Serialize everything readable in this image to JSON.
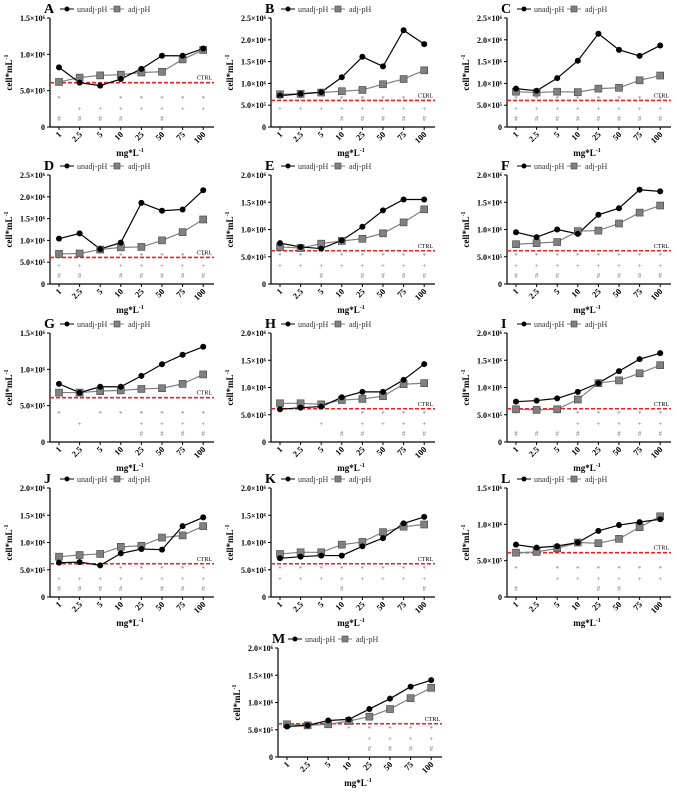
{
  "chart_data": {
    "type": "line",
    "categories": [
      "1",
      "2.5",
      "5",
      "10",
      "25",
      "50",
      "75",
      "100"
    ],
    "xlabel": "mg*L",
    "xlabel_sup": "-1",
    "ylabel": "cell*mL",
    "ylabel_sup": "-1",
    "units": "cells per mL x 10^6",
    "legend": [
      "unadj-pH",
      "adj-pH"
    ],
    "ctrl_label": "CTRL",
    "ctrl_value": 0.61,
    "colors": {
      "unadj": "#000000",
      "adj": "#808080",
      "ctrl": "#e8231f",
      "sig": "#777777"
    },
    "sig_symbols": [
      "*",
      "+",
      "#"
    ],
    "panels": [
      {
        "letter": "A",
        "ymax": 1.5,
        "yticks": [
          0,
          0.5,
          1.0,
          1.5
        ],
        "ytick_labels": [
          "0",
          "5.0×10⁵",
          "1.0×10⁶",
          "1.5×10⁶"
        ],
        "unadj": [
          0.82,
          0.61,
          0.57,
          0.66,
          0.8,
          0.98,
          0.98,
          1.08
        ],
        "adj": [
          0.62,
          0.68,
          0.71,
          0.72,
          0.75,
          0.76,
          0.93,
          1.06
        ],
        "star": [
          "1",
          "10",
          "25",
          "50",
          "75",
          "100"
        ],
        "plus": [
          "2.5",
          "5",
          "10",
          "25",
          "50",
          "75",
          "100"
        ],
        "hash": [
          "1",
          "2.5",
          "5",
          "10",
          "50"
        ]
      },
      {
        "letter": "B",
        "ymax": 2.5,
        "yticks": [
          0,
          0.5,
          1.0,
          1.5,
          2.0,
          2.5
        ],
        "ytick_labels": [
          "0",
          "5.0×10⁵",
          "1.0×10⁶",
          "1.5×10⁶",
          "2.0×10⁶",
          "2.5×10⁶"
        ],
        "unadj": [
          0.72,
          0.76,
          0.8,
          1.14,
          1.61,
          1.39,
          2.22,
          1.9
        ],
        "adj": [
          0.75,
          0.76,
          0.79,
          0.82,
          0.85,
          0.98,
          1.1,
          1.3
        ],
        "star": [
          "1",
          "2.5",
          "10",
          "25",
          "50",
          "75",
          "100"
        ],
        "plus": [
          "1",
          "2.5",
          "5",
          "10",
          "25",
          "50",
          "75",
          "100"
        ],
        "hash": [
          "10",
          "25",
          "50",
          "75",
          "100"
        ]
      },
      {
        "letter": "C",
        "ymax": 2.5,
        "yticks": [
          0,
          0.5,
          1.0,
          1.5,
          2.0,
          2.5
        ],
        "ytick_labels": [
          "0",
          "5.0×10⁵",
          "1.0×10⁶",
          "1.5×10⁶",
          "2.0×10⁶",
          "2.5×10⁶"
        ],
        "unadj": [
          0.88,
          0.83,
          1.12,
          1.52,
          2.14,
          1.77,
          1.63,
          1.87
        ],
        "adj": [
          0.81,
          0.79,
          0.81,
          0.8,
          0.88,
          0.9,
          1.07,
          1.18
        ],
        "star": [
          "1",
          "2.5",
          "5",
          "10",
          "25",
          "50",
          "75",
          "100"
        ],
        "plus": [
          "1",
          "2.5",
          "5",
          "10",
          "25",
          "50",
          "75",
          "100"
        ],
        "hash": [
          "1",
          "2.5",
          "5",
          "10",
          "25",
          "50",
          "75",
          "100"
        ]
      },
      {
        "letter": "D",
        "ymax": 2.5,
        "yticks": [
          0,
          0.5,
          1.0,
          1.5,
          2.0,
          2.5
        ],
        "ytick_labels": [
          "0",
          "5.0×10⁵",
          "1.0×10⁶",
          "1.5×10⁶",
          "2.0×10⁶",
          "2.5×10⁶"
        ],
        "unadj": [
          1.04,
          1.16,
          0.8,
          0.95,
          1.86,
          1.68,
          1.71,
          2.15
        ],
        "adj": [
          0.69,
          0.7,
          0.79,
          0.84,
          0.85,
          1.0,
          1.19,
          1.48
        ],
        "star": [
          "1",
          "2.5",
          "10",
          "25",
          "50",
          "75",
          "100"
        ],
        "plus": [
          "1",
          "2.5",
          "10",
          "25",
          "50",
          "75",
          "100"
        ],
        "hash": [
          "1",
          "2.5",
          "10",
          "25",
          "50",
          "75",
          "100"
        ]
      },
      {
        "letter": "E",
        "ymax": 2.0,
        "yticks": [
          0,
          0.5,
          1.0,
          1.5,
          2.0
        ],
        "ytick_labels": [
          "0",
          "5.0×10⁵",
          "1.0×10⁶",
          "1.5×10⁶",
          "2.0×10⁶"
        ],
        "unadj": [
          0.75,
          0.68,
          0.65,
          0.8,
          1.05,
          1.35,
          1.55,
          1.55
        ],
        "adj": [
          0.68,
          0.66,
          0.74,
          0.79,
          0.83,
          0.93,
          1.13,
          1.37
        ],
        "star": [
          "1",
          "2.5",
          "10",
          "25",
          "50",
          "75",
          "100"
        ],
        "plus": [
          "1",
          "2.5",
          "5",
          "10",
          "25",
          "50",
          "75",
          "100"
        ],
        "hash": [
          "5",
          "25",
          "50",
          "75",
          "100"
        ]
      },
      {
        "letter": "F",
        "ymax": 2.0,
        "yticks": [
          0,
          0.5,
          1.0,
          1.5,
          2.0
        ],
        "ytick_labels": [
          "0",
          "5.0×10⁵",
          "1.0×10⁶",
          "1.5×10⁶",
          "2.0×10⁶"
        ],
        "unadj": [
          0.95,
          0.86,
          1.0,
          0.92,
          1.27,
          1.39,
          1.73,
          1.7
        ],
        "adj": [
          0.73,
          0.75,
          0.77,
          0.97,
          0.98,
          1.11,
          1.31,
          1.44
        ],
        "star": [
          "1",
          "2.5",
          "5",
          "10",
          "25",
          "50",
          "75",
          "100"
        ],
        "plus": [
          "1",
          "2.5",
          "5",
          "10",
          "25",
          "50",
          "75",
          "100"
        ],
        "hash": [
          "1",
          "2.5",
          "5",
          "25",
          "50",
          "75",
          "100"
        ]
      },
      {
        "letter": "G",
        "ymax": 1.5,
        "yticks": [
          0,
          0.5,
          1.0,
          1.5
        ],
        "ytick_labels": [
          "0",
          "5.0×10⁵",
          "1.0×10⁶",
          "1.5×10⁶"
        ],
        "unadj": [
          0.8,
          0.68,
          0.76,
          0.76,
          0.91,
          1.07,
          1.2,
          1.31
        ],
        "adj": [
          0.68,
          0.68,
          0.7,
          0.71,
          0.73,
          0.74,
          0.8,
          0.93
        ],
        "star": [
          "1",
          "5",
          "10",
          "25",
          "50",
          "75",
          "100"
        ],
        "plus": [
          "2.5",
          "25",
          "50",
          "75",
          "100"
        ],
        "hash": [
          "25",
          "50",
          "75",
          "100"
        ]
      },
      {
        "letter": "H",
        "ymax": 2.0,
        "yticks": [
          0,
          0.5,
          1.0,
          1.5,
          2.0
        ],
        "ytick_labels": [
          "0",
          "5.0×10⁵",
          "1.0×10⁶",
          "1.5×10⁶",
          "2.0×10⁶"
        ],
        "unadj": [
          0.6,
          0.63,
          0.65,
          0.82,
          0.92,
          0.92,
          1.14,
          1.43
        ],
        "adj": [
          0.71,
          0.71,
          0.69,
          0.77,
          0.79,
          0.84,
          1.06,
          1.08
        ],
        "star": [
          "25",
          "50",
          "75",
          "100"
        ],
        "plus": [
          "5",
          "25",
          "50",
          "75",
          "100"
        ],
        "hash": [
          "10",
          "25",
          "75",
          "100"
        ]
      },
      {
        "letter": "I",
        "ymax": 2.0,
        "yticks": [
          0,
          0.5,
          1.0,
          1.5,
          2.0
        ],
        "ytick_labels": [
          "0",
          "5.0×10⁵",
          "1.0×10⁶",
          "1.5×10⁶",
          "2.0×10⁶"
        ],
        "unadj": [
          0.74,
          0.76,
          0.8,
          0.92,
          1.08,
          1.3,
          1.52,
          1.63
        ],
        "adj": [
          0.6,
          0.59,
          0.6,
          0.78,
          1.08,
          1.13,
          1.26,
          1.41
        ],
        "star": [
          "1",
          "2.5",
          "5",
          "10",
          "25",
          "50",
          "75",
          "100"
        ],
        "plus": [
          "10",
          "25",
          "50",
          "75",
          "100"
        ],
        "hash": [
          "1",
          "2.5",
          "5",
          "10",
          "50",
          "75",
          "100"
        ]
      },
      {
        "letter": "J",
        "ymax": 2.0,
        "yticks": [
          0,
          0.5,
          1.0,
          1.5,
          2.0
        ],
        "ytick_labels": [
          "0",
          "5.0×10⁵",
          "1.0×10⁶",
          "1.5×10⁶",
          "2.0×10⁶"
        ],
        "unadj": [
          0.63,
          0.64,
          0.58,
          0.8,
          0.88,
          0.87,
          1.3,
          1.46
        ],
        "adj": [
          0.74,
          0.77,
          0.79,
          0.92,
          0.94,
          1.09,
          1.13,
          1.3
        ],
        "star": [
          "10",
          "25",
          "50",
          "75",
          "100"
        ],
        "plus": [
          "1",
          "2.5",
          "5",
          "10",
          "25",
          "50",
          "75",
          "100"
        ],
        "hash": [
          "1",
          "2.5",
          "5",
          "10",
          "50",
          "75",
          "100"
        ]
      },
      {
        "letter": "K",
        "ymax": 2.0,
        "yticks": [
          0,
          0.5,
          1.0,
          1.5,
          2.0
        ],
        "ytick_labels": [
          "0",
          "5.0×10⁵",
          "1.0×10⁶",
          "1.5×10⁶",
          "2.0×10⁶"
        ],
        "unadj": [
          0.71,
          0.74,
          0.76,
          0.76,
          0.93,
          1.08,
          1.35,
          1.47
        ],
        "adj": [
          0.79,
          0.82,
          0.82,
          0.96,
          1.01,
          1.19,
          1.29,
          1.33
        ],
        "star": [
          "1",
          "2.5",
          "5",
          "10",
          "25",
          "50",
          "75",
          "100"
        ],
        "plus": [
          "1",
          "2.5",
          "5",
          "10",
          "25",
          "50",
          "75",
          "100"
        ],
        "hash": [
          "10",
          "100"
        ]
      },
      {
        "letter": "L",
        "ymax": 1.5,
        "yticks": [
          0,
          0.5,
          1.0,
          1.5
        ],
        "ytick_labels": [
          "0",
          "5.0×10⁵",
          "1.0×10⁶",
          "1.5×10⁶"
        ],
        "unadj": [
          0.72,
          0.68,
          0.7,
          0.75,
          0.91,
          0.99,
          1.03,
          1.07
        ],
        "adj": [
          0.61,
          0.62,
          0.67,
          0.75,
          0.74,
          0.8,
          0.96,
          1.11
        ],
        "star": [
          "1",
          "5",
          "10",
          "25",
          "50",
          "75",
          "100"
        ],
        "plus": [
          "5",
          "10",
          "25",
          "50",
          "75",
          "100"
        ],
        "hash": [
          "1",
          "25",
          "50"
        ]
      },
      {
        "letter": "M",
        "ymax": 2.0,
        "yticks": [
          0,
          0.5,
          1.0,
          1.5,
          2.0
        ],
        "ytick_labels": [
          "0",
          "5.0×10⁵",
          "1.0×10⁶",
          "1.5×10⁶",
          "2.0×10⁶"
        ],
        "unadj": [
          0.56,
          0.58,
          0.67,
          0.69,
          0.88,
          1.07,
          1.29,
          1.41
        ],
        "adj": [
          0.6,
          0.58,
          0.6,
          0.66,
          0.74,
          0.88,
          1.08,
          1.27
        ],
        "star": [
          "10",
          "25",
          "50",
          "75",
          "100"
        ],
        "plus": [
          "25",
          "50",
          "75",
          "100"
        ],
        "hash": [
          "25",
          "50",
          "75",
          "100"
        ]
      }
    ]
  }
}
